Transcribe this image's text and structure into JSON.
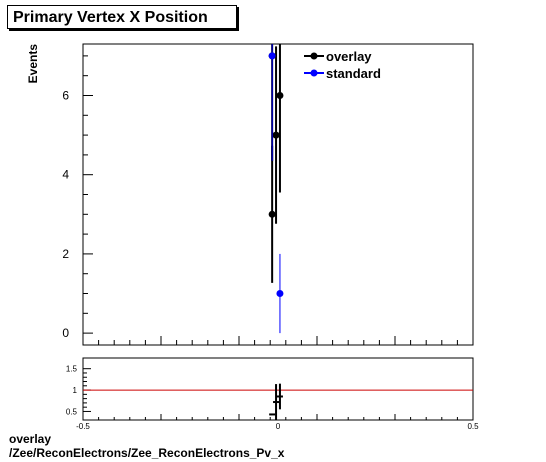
{
  "title": "Primary Vertex X Position",
  "footer": {
    "line1": "overlay",
    "line2": "/Zee/ReconElectrons/Zee_ReconElectrons_Pv_x"
  },
  "colors": {
    "overlay": "#000000",
    "standard": "#0000ff",
    "ratio_line": "#cc0000"
  },
  "chart_data": [
    {
      "type": "scatter",
      "title": "Primary Vertex X Position",
      "xlabel": "",
      "ylabel": "Events",
      "xlim": [
        -0.5,
        0.5
      ],
      "ylim": [
        -0.3,
        7.3
      ],
      "yticks": [
        0,
        2,
        4,
        6
      ],
      "legend": "top-right",
      "series": [
        {
          "name": "overlay",
          "color": "#000000",
          "points": [
            {
              "x": -0.015,
              "y": 3,
              "err": 1.73
            },
            {
              "x": -0.005,
              "y": 5,
              "err": 2.24
            },
            {
              "x": 0.005,
              "y": 6,
              "err": 2.45
            },
            {
              "x": -0.015,
              "y": 7,
              "err": 2.65
            }
          ]
        },
        {
          "name": "standard",
          "color": "#0000ff",
          "points": [
            {
              "x": -0.015,
              "y": 7,
              "err": 2.65
            },
            {
              "x": 0.005,
              "y": 1,
              "err": 1.0
            }
          ]
        }
      ]
    },
    {
      "type": "scatter",
      "title": "",
      "xlabel": "",
      "ylabel": "",
      "xlim": [
        -0.5,
        0.5
      ],
      "ylim": [
        0.3,
        1.75
      ],
      "xticks": [
        -0.5,
        0,
        0.5
      ],
      "xticklabels": [
        "-0.5",
        "0",
        "0.5"
      ],
      "yticks": [
        0.5,
        1,
        1.5
      ],
      "yticklabels": [
        "0.5",
        "1",
        "1.5"
      ],
      "reference_line": 1,
      "points": [
        {
          "x": -0.015,
          "y": 0.43,
          "err": 0.0
        },
        {
          "x": -0.005,
          "y": 0.72,
          "err": 0.42
        },
        {
          "x": 0.005,
          "y": 0.85,
          "err": 0.3
        }
      ]
    }
  ]
}
